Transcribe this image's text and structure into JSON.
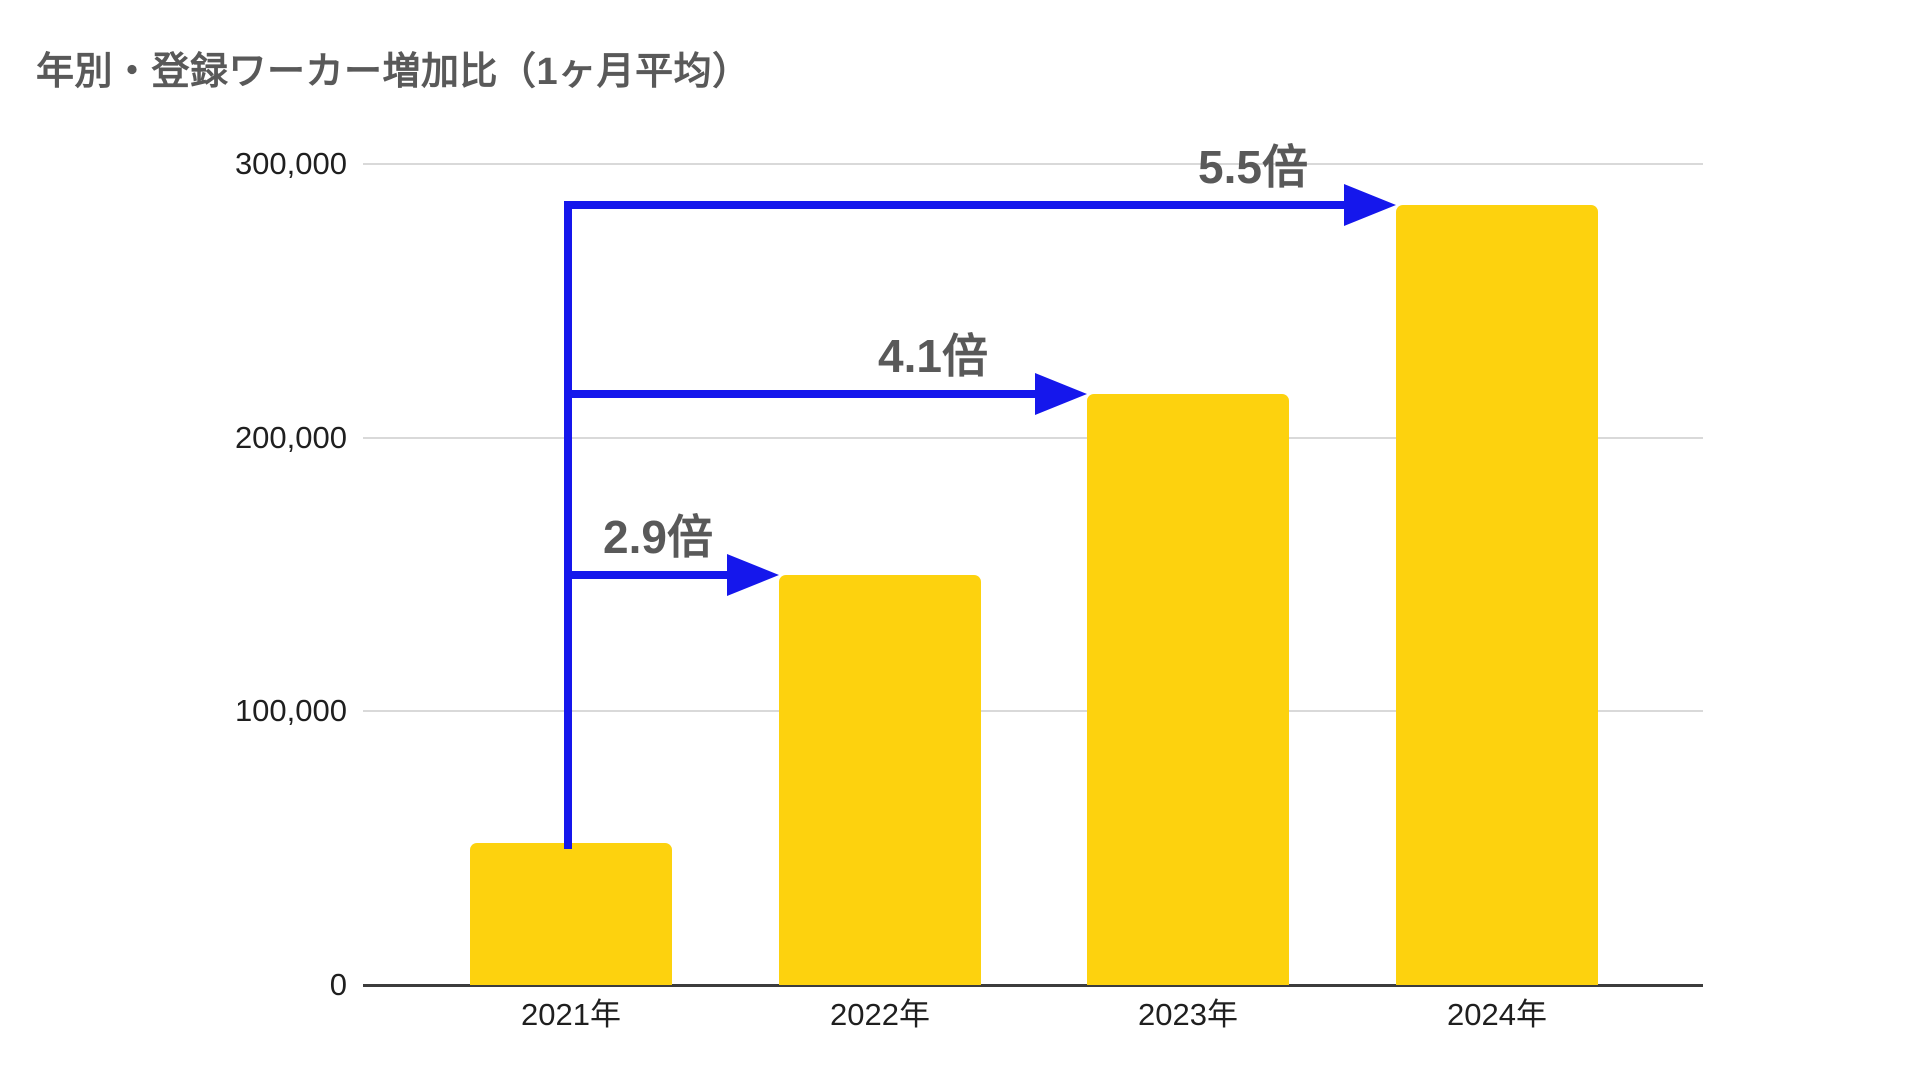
{
  "header": {
    "title": "年別・登録ワーカー増加比（1ヶ月平均）"
  },
  "chart_data": {
    "type": "bar",
    "title": "年別・登録ワーカー増加比（1ヶ月平均）",
    "categories": [
      "2021年",
      "2022年",
      "2023年",
      "2024年"
    ],
    "values": [
      52000,
      150000,
      216000,
      285000
    ],
    "xlabel": "",
    "ylabel": "",
    "ylim": [
      0,
      300000
    ],
    "yticks": [
      {
        "v": 0,
        "label": "0"
      },
      {
        "v": 100000,
        "label": "100,000"
      },
      {
        "v": 200000,
        "label": "200,000"
      },
      {
        "v": 300000,
        "label": "300,000"
      }
    ],
    "grid": true,
    "legend": "none",
    "bar_color": "#fdd20e",
    "arrow_color": "#1517ec",
    "label_color": "#595959",
    "tick_color": "#1f1f1f",
    "annotations": [
      {
        "text": "2.9倍",
        "from": "2021年",
        "to": "2022年"
      },
      {
        "text": "4.1倍",
        "from": "2021年",
        "to": "2023年"
      },
      {
        "text": "5.5倍",
        "from": "2021年",
        "to": "2024年"
      }
    ]
  }
}
